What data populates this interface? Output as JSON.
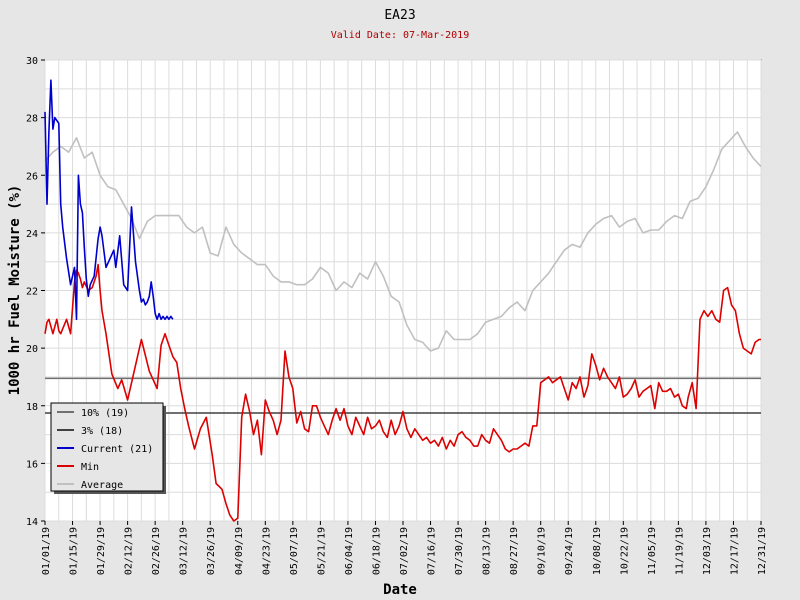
{
  "chart_data": {
    "type": "line",
    "title": "EA23",
    "subtitle": "Valid Date: 07-Mar-2019",
    "xlabel": "Date",
    "ylabel": "1000 hr Fuel Moisture (%)",
    "xlim": [
      "2019-01-01",
      "2019-12-31"
    ],
    "ylim": [
      14,
      30
    ],
    "y_ticks": [
      14,
      16,
      18,
      20,
      22,
      24,
      26,
      28,
      30
    ],
    "x_ticks": [
      "01/01/19",
      "01/15/19",
      "01/29/19",
      "02/12/19",
      "02/26/19",
      "03/12/19",
      "03/26/19",
      "04/09/19",
      "04/23/19",
      "05/07/19",
      "05/21/19",
      "06/04/19",
      "06/18/19",
      "07/02/19",
      "07/16/19",
      "07/30/19",
      "08/13/19",
      "08/27/19",
      "09/10/19",
      "09/24/19",
      "10/08/19",
      "10/22/19",
      "11/05/19",
      "11/19/19",
      "12/03/19",
      "12/17/19",
      "12/31/19"
    ],
    "grid": true,
    "legend_position": "bottom-left",
    "reference_lines": [
      {
        "name": "10% (19)",
        "value": 18.95,
        "color": "#707070"
      },
      {
        "name": "3% (18)",
        "value": 17.75,
        "color": "#404040"
      }
    ],
    "series": [
      {
        "name": "Current (21)",
        "color": "#0000cc",
        "x": [
          "2019-01-01",
          "2019-01-02",
          "2019-01-03",
          "2019-01-04",
          "2019-01-05",
          "2019-01-06",
          "2019-01-07",
          "2019-01-08",
          "2019-01-09",
          "2019-01-10",
          "2019-01-12",
          "2019-01-14",
          "2019-01-16",
          "2019-01-17",
          "2019-01-18",
          "2019-01-19",
          "2019-01-20",
          "2019-01-21",
          "2019-01-22",
          "2019-01-23",
          "2019-01-24",
          "2019-01-26",
          "2019-01-28",
          "2019-01-29",
          "2019-01-30",
          "2019-02-01",
          "2019-02-03",
          "2019-02-05",
          "2019-02-06",
          "2019-02-08",
          "2019-02-10",
          "2019-02-12",
          "2019-02-14",
          "2019-02-16",
          "2019-02-18",
          "2019-02-19",
          "2019-02-20",
          "2019-02-21",
          "2019-02-22",
          "2019-02-23",
          "2019-02-24",
          "2019-02-25",
          "2019-02-26",
          "2019-02-27",
          "2019-02-28",
          "2019-03-01",
          "2019-03-02",
          "2019-03-03",
          "2019-03-04",
          "2019-03-05",
          "2019-03-06",
          "2019-03-07"
        ],
        "y": [
          28.2,
          25.0,
          27.5,
          29.3,
          27.6,
          28.0,
          27.9,
          27.8,
          25.0,
          24.2,
          23.1,
          22.2,
          22.8,
          21.0,
          26.0,
          25.0,
          24.7,
          23.5,
          22.4,
          21.8,
          22.2,
          22.5,
          23.8,
          24.2,
          23.9,
          22.8,
          23.1,
          23.4,
          22.8,
          23.9,
          22.2,
          22.0,
          24.9,
          23.0,
          22.0,
          21.6,
          21.7,
          21.5,
          21.6,
          21.8,
          22.3,
          21.8,
          21.2,
          21.0,
          21.2,
          21.0,
          21.1,
          21.0,
          21.1,
          21.0,
          21.1,
          21.0
        ]
      },
      {
        "name": "Min",
        "color": "#dd0000",
        "x": [
          "2019-01-01",
          "2019-01-02",
          "2019-01-03",
          "2019-01-05",
          "2019-01-07",
          "2019-01-08",
          "2019-01-09",
          "2019-01-12",
          "2019-01-14",
          "2019-01-16",
          "2019-01-17",
          "2019-01-18",
          "2019-01-19",
          "2019-01-20",
          "2019-01-21",
          "2019-01-23",
          "2019-01-25",
          "2019-01-27",
          "2019-01-28",
          "2019-01-29",
          "2019-01-30",
          "2019-02-01",
          "2019-02-04",
          "2019-02-07",
          "2019-02-09",
          "2019-02-12",
          "2019-02-16",
          "2019-02-19",
          "2019-02-23",
          "2019-02-25",
          "2019-02-27",
          "2019-03-01",
          "2019-03-03",
          "2019-03-05",
          "2019-03-07",
          "2019-03-09",
          "2019-03-11",
          "2019-03-13",
          "2019-03-15",
          "2019-03-18",
          "2019-03-21",
          "2019-03-24",
          "2019-03-27",
          "2019-03-29",
          "2019-04-01",
          "2019-04-03",
          "2019-04-05",
          "2019-04-07",
          "2019-04-09",
          "2019-04-11",
          "2019-04-13",
          "2019-04-15",
          "2019-04-17",
          "2019-04-19",
          "2019-04-21",
          "2019-04-23",
          "2019-04-25",
          "2019-04-27",
          "2019-04-29",
          "2019-05-01",
          "2019-05-03",
          "2019-05-05",
          "2019-05-07",
          "2019-05-09",
          "2019-05-11",
          "2019-05-13",
          "2019-05-15",
          "2019-05-17",
          "2019-05-19",
          "2019-05-21",
          "2019-05-23",
          "2019-05-25",
          "2019-05-27",
          "2019-05-29",
          "2019-05-31",
          "2019-06-02",
          "2019-06-04",
          "2019-06-06",
          "2019-06-08",
          "2019-06-10",
          "2019-06-12",
          "2019-06-14",
          "2019-06-16",
          "2019-06-18",
          "2019-06-20",
          "2019-06-22",
          "2019-06-24",
          "2019-06-26",
          "2019-06-28",
          "2019-06-30",
          "2019-07-02",
          "2019-07-04",
          "2019-07-06",
          "2019-07-08",
          "2019-07-10",
          "2019-07-12",
          "2019-07-14",
          "2019-07-16",
          "2019-07-18",
          "2019-07-20",
          "2019-07-22",
          "2019-07-24",
          "2019-07-26",
          "2019-07-28",
          "2019-07-30",
          "2019-08-01",
          "2019-08-03",
          "2019-08-05",
          "2019-08-07",
          "2019-08-09",
          "2019-08-11",
          "2019-08-13",
          "2019-08-15",
          "2019-08-17",
          "2019-08-19",
          "2019-08-21",
          "2019-08-23",
          "2019-08-25",
          "2019-08-27",
          "2019-08-29",
          "2019-08-31",
          "2019-09-02",
          "2019-09-04",
          "2019-09-06",
          "2019-09-08",
          "2019-09-10",
          "2019-09-12",
          "2019-09-14",
          "2019-09-16",
          "2019-09-18",
          "2019-09-20",
          "2019-09-22",
          "2019-09-24",
          "2019-09-26",
          "2019-09-28",
          "2019-09-30",
          "2019-10-02",
          "2019-10-04",
          "2019-10-06",
          "2019-10-08",
          "2019-10-10",
          "2019-10-12",
          "2019-10-14",
          "2019-10-16",
          "2019-10-18",
          "2019-10-20",
          "2019-10-22",
          "2019-10-24",
          "2019-10-26",
          "2019-10-28",
          "2019-10-30",
          "2019-11-01",
          "2019-11-03",
          "2019-11-05",
          "2019-11-07",
          "2019-11-09",
          "2019-11-11",
          "2019-11-13",
          "2019-11-15",
          "2019-11-17",
          "2019-11-19",
          "2019-11-21",
          "2019-11-23",
          "2019-11-24",
          "2019-11-26",
          "2019-11-28",
          "2019-11-30",
          "2019-12-02",
          "2019-12-04",
          "2019-12-06",
          "2019-12-08",
          "2019-12-10",
          "2019-12-12",
          "2019-12-14",
          "2019-12-16",
          "2019-12-18",
          "2019-12-20",
          "2019-12-22",
          "2019-12-24",
          "2019-12-26",
          "2019-12-28",
          "2019-12-30",
          "2019-12-31"
        ],
        "y": [
          20.5,
          20.9,
          21.0,
          20.5,
          21.0,
          20.6,
          20.5,
          21.0,
          20.5,
          22.3,
          22.7,
          22.6,
          22.4,
          22.1,
          22.3,
          22.0,
          22.1,
          22.5,
          22.9,
          22.0,
          21.3,
          20.5,
          19.1,
          18.6,
          18.9,
          18.2,
          19.4,
          20.3,
          19.2,
          18.9,
          18.6,
          20.1,
          20.5,
          20.1,
          19.7,
          19.5,
          18.6,
          17.9,
          17.3,
          16.5,
          17.2,
          17.6,
          16.3,
          15.3,
          15.1,
          14.6,
          14.2,
          14.0,
          14.1,
          17.6,
          18.4,
          17.8,
          17.0,
          17.5,
          16.3,
          18.2,
          17.8,
          17.5,
          17.0,
          17.5,
          19.9,
          19.0,
          18.6,
          17.4,
          17.8,
          17.2,
          17.1,
          18.0,
          18.0,
          17.6,
          17.3,
          17.0,
          17.5,
          17.9,
          17.5,
          17.9,
          17.3,
          17.0,
          17.6,
          17.3,
          17.0,
          17.6,
          17.2,
          17.3,
          17.5,
          17.1,
          16.9,
          17.5,
          17.0,
          17.3,
          17.8,
          17.2,
          16.9,
          17.2,
          17.0,
          16.8,
          16.9,
          16.7,
          16.8,
          16.6,
          16.9,
          16.5,
          16.8,
          16.6,
          17.0,
          17.1,
          16.9,
          16.8,
          16.6,
          16.6,
          17.0,
          16.8,
          16.7,
          17.2,
          17.0,
          16.8,
          16.5,
          16.4,
          16.5,
          16.5,
          16.6,
          16.7,
          16.6,
          17.3,
          17.3,
          18.8,
          18.9,
          19.0,
          18.8,
          18.9,
          19.0,
          18.6,
          18.2,
          18.8,
          18.6,
          19.0,
          18.3,
          18.7,
          19.8,
          19.4,
          18.9,
          19.3,
          19.0,
          18.8,
          18.6,
          19.0,
          18.3,
          18.4,
          18.6,
          18.9,
          18.3,
          18.5,
          18.6,
          18.7,
          17.9,
          18.8,
          18.5,
          18.5,
          18.6,
          18.3,
          18.4,
          18.0,
          17.9,
          18.3,
          18.8,
          17.9,
          21.0,
          21.3,
          21.1,
          21.3,
          21.0,
          20.9,
          22.0,
          22.1,
          21.5,
          21.3,
          20.5,
          20.0,
          19.9,
          19.8,
          20.2,
          20.3,
          20.3
        ]
      },
      {
        "name": "Average",
        "color": "#c0c0c0",
        "x": [
          "2019-01-01",
          "2019-01-05",
          "2019-01-09",
          "2019-01-13",
          "2019-01-17",
          "2019-01-21",
          "2019-01-25",
          "2019-01-29",
          "2019-02-02",
          "2019-02-06",
          "2019-02-10",
          "2019-02-14",
          "2019-02-18",
          "2019-02-22",
          "2019-02-26",
          "2019-03-02",
          "2019-03-06",
          "2019-03-10",
          "2019-03-14",
          "2019-03-18",
          "2019-03-22",
          "2019-03-26",
          "2019-03-30",
          "2019-04-03",
          "2019-04-07",
          "2019-04-11",
          "2019-04-15",
          "2019-04-19",
          "2019-04-23",
          "2019-04-27",
          "2019-05-01",
          "2019-05-05",
          "2019-05-09",
          "2019-05-13",
          "2019-05-17",
          "2019-05-21",
          "2019-05-25",
          "2019-05-29",
          "2019-06-02",
          "2019-06-06",
          "2019-06-10",
          "2019-06-14",
          "2019-06-18",
          "2019-06-22",
          "2019-06-26",
          "2019-06-30",
          "2019-07-04",
          "2019-07-08",
          "2019-07-12",
          "2019-07-16",
          "2019-07-20",
          "2019-07-24",
          "2019-07-28",
          "2019-08-01",
          "2019-08-05",
          "2019-08-09",
          "2019-08-13",
          "2019-08-17",
          "2019-08-21",
          "2019-08-25",
          "2019-08-29",
          "2019-09-02",
          "2019-09-06",
          "2019-09-10",
          "2019-09-14",
          "2019-09-18",
          "2019-09-22",
          "2019-09-26",
          "2019-09-30",
          "2019-10-04",
          "2019-10-08",
          "2019-10-12",
          "2019-10-16",
          "2019-10-20",
          "2019-10-24",
          "2019-10-28",
          "2019-11-01",
          "2019-11-05",
          "2019-11-09",
          "2019-11-13",
          "2019-11-17",
          "2019-11-21",
          "2019-11-25",
          "2019-11-29",
          "2019-12-03",
          "2019-12-07",
          "2019-12-11",
          "2019-12-15",
          "2019-12-19",
          "2019-12-23",
          "2019-12-27",
          "2019-12-31"
        ],
        "y": [
          26.5,
          26.8,
          27.0,
          26.8,
          27.3,
          26.6,
          26.8,
          26.0,
          25.6,
          25.5,
          25.0,
          24.5,
          23.8,
          24.4,
          24.6,
          24.6,
          24.6,
          24.6,
          24.2,
          24.0,
          24.2,
          23.3,
          23.2,
          24.2,
          23.6,
          23.3,
          23.1,
          22.9,
          22.9,
          22.5,
          22.3,
          22.3,
          22.2,
          22.2,
          22.4,
          22.8,
          22.6,
          22.0,
          22.3,
          22.1,
          22.6,
          22.4,
          23.0,
          22.5,
          21.8,
          21.6,
          20.8,
          20.3,
          20.2,
          19.9,
          20.0,
          20.6,
          20.3,
          20.3,
          20.3,
          20.5,
          20.9,
          21.0,
          21.1,
          21.4,
          21.6,
          21.3,
          22.0,
          22.3,
          22.6,
          23.0,
          23.4,
          23.6,
          23.5,
          24.0,
          24.3,
          24.5,
          24.6,
          24.2,
          24.4,
          24.5,
          24.0,
          24.1,
          24.1,
          24.4,
          24.6,
          24.5,
          25.1,
          25.2,
          25.6,
          26.2,
          26.9,
          27.2,
          27.5,
          27.0,
          26.6,
          26.3
        ]
      }
    ]
  }
}
